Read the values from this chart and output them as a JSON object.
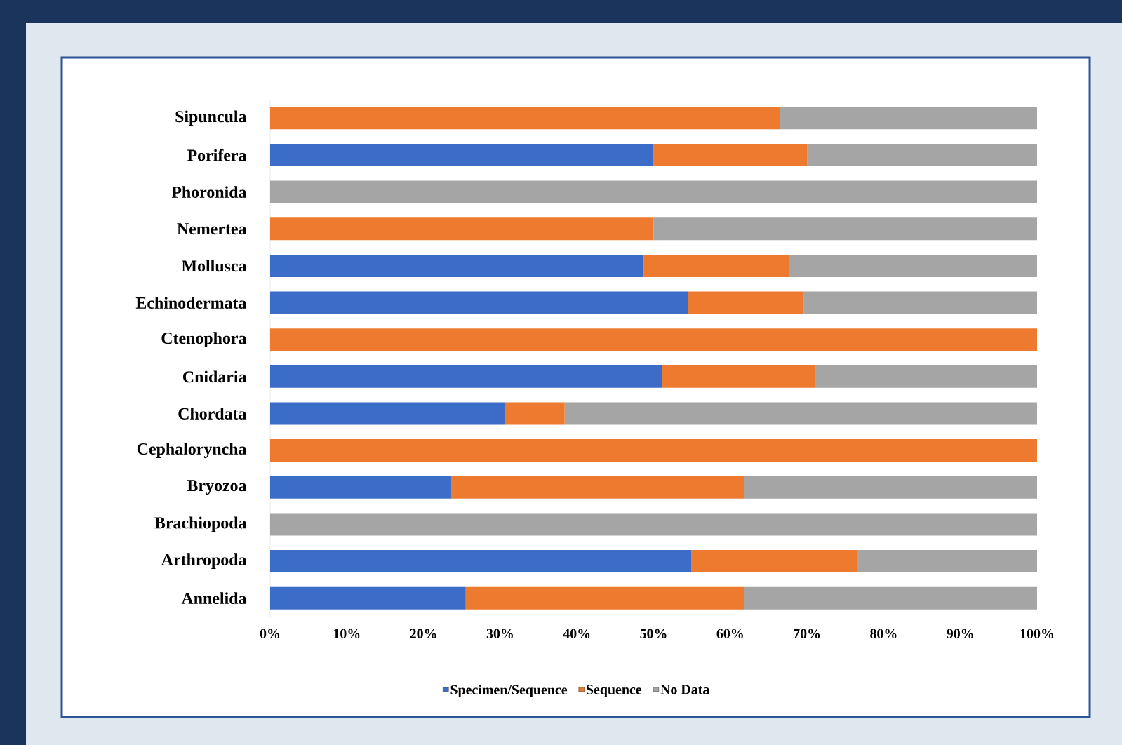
{
  "chart_data": {
    "type": "bar",
    "orientation": "horizontal",
    "stacked": true,
    "legend": "bottom",
    "categories": [
      "Sipuncula",
      "Porifera",
      "Phoronida",
      "Nemertea",
      "Mollusca",
      "Echinodermata",
      "Ctenophora",
      "Cnidaria",
      "Chordata",
      "Cephaloryncha",
      "Bryozoa",
      "Brachiopoda",
      "Arthropoda",
      "Annelida"
    ],
    "series": [
      {
        "name": "Specimen/Sequence",
        "color": "#3b6cc8",
        "values": [
          0,
          50,
          0,
          0,
          48.7,
          54.5,
          0,
          51.1,
          30.6,
          0,
          23.6,
          0,
          54.9,
          25.5
        ]
      },
      {
        "name": "Sequence",
        "color": "#ee7a2f",
        "values": [
          66.5,
          20,
          0,
          50,
          19.0,
          15.1,
          100,
          19.9,
          7.8,
          100,
          38.2,
          0,
          21.6,
          36.3
        ]
      },
      {
        "name": "No Data",
        "color": "#a5a5a5",
        "values": [
          33.5,
          30,
          100,
          50,
          32.3,
          30.4,
          0,
          29.0,
          61.6,
          0,
          38.2,
          100,
          23.5,
          38.2
        ]
      }
    ],
    "xlim": [
      0,
      100
    ],
    "xticks": [
      {
        "value": 0,
        "label": "0%"
      },
      {
        "value": 10,
        "label": "10%"
      },
      {
        "value": 20,
        "label": "20%"
      },
      {
        "value": 30,
        "label": "30%"
      },
      {
        "value": 40,
        "label": "40%"
      },
      {
        "value": 50,
        "label": "50%"
      },
      {
        "value": 60,
        "label": "60%"
      },
      {
        "value": 70,
        "label": "70%"
      },
      {
        "value": 80,
        "label": "80%"
      },
      {
        "value": 90,
        "label": "90%"
      },
      {
        "value": 100,
        "label": "100%"
      }
    ]
  }
}
